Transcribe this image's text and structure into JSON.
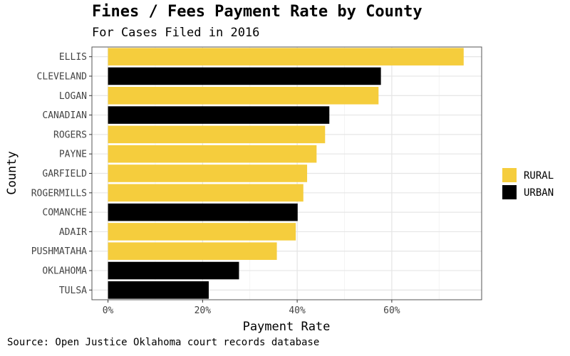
{
  "chart_data": {
    "type": "bar",
    "orientation": "horizontal",
    "title": "Fines / Fees Payment Rate by County",
    "subtitle": "For Cases Filed in 2016",
    "xlabel": "Payment Rate",
    "ylabel": "County",
    "caption": "Source: Open Justice Oklahoma court records database",
    "xlim": [
      -0.034,
      0.79
    ],
    "xticks": [
      0,
      0.2,
      0.4,
      0.6
    ],
    "xtick_labels": [
      "0%",
      "20%",
      "40%",
      "60%"
    ],
    "grid": true,
    "legend_position": "right",
    "legend": [
      {
        "label": "RURAL",
        "color": "#F5CD3D"
      },
      {
        "label": "URBAN",
        "color": "#000000"
      }
    ],
    "categories": [
      "ELLIS",
      "CLEVELAND",
      "LOGAN",
      "CANADIAN",
      "ROGERS",
      "PAYNE",
      "GARFIELD",
      "ROGERMILLS",
      "COMANCHE",
      "ADAIR",
      "PUSHMATAHA",
      "OKLAHOMA",
      "TULSA"
    ],
    "values": [
      0.752,
      0.577,
      0.572,
      0.468,
      0.459,
      0.441,
      0.421,
      0.413,
      0.401,
      0.397,
      0.357,
      0.277,
      0.213
    ],
    "groups": [
      "RURAL",
      "URBAN",
      "RURAL",
      "URBAN",
      "RURAL",
      "RURAL",
      "RURAL",
      "RURAL",
      "URBAN",
      "RURAL",
      "RURAL",
      "URBAN",
      "URBAN"
    ]
  }
}
